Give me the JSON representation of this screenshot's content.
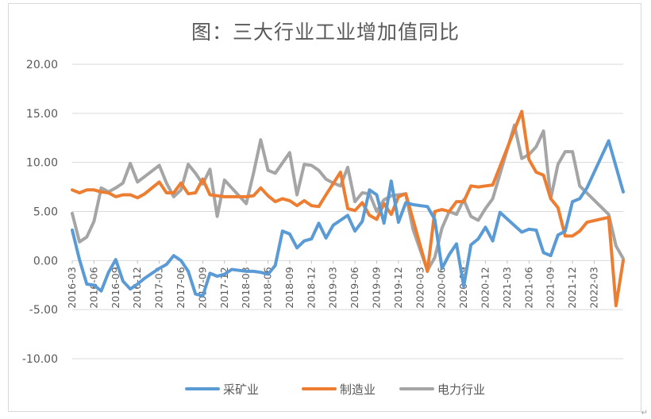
{
  "chart_data": {
    "type": "line",
    "title": "图：三大行业工业增加值同比",
    "ylim": [
      -10,
      20
    ],
    "y_ticks": [
      "20.00",
      "15.00",
      "10.00",
      "5.00",
      "0.00",
      "-5.00",
      "-10.00"
    ],
    "x_tick_labels": [
      "2016-03",
      "2016-06",
      "2016-09",
      "2016-12",
      "2017-03",
      "2017-06",
      "2017-09",
      "2017-12",
      "2018-03",
      "2018-06",
      "2018-09",
      "2018-12",
      "2019-03",
      "2019-06",
      "2019-09",
      "2019-12",
      "2020-03",
      "2020-06",
      "2020-09",
      "2020-12",
      "2021-03",
      "2021-06",
      "2021-09",
      "2021-12",
      "2022-03"
    ],
    "x_start": "2016-03",
    "x_end": "2022-05",
    "grid": true,
    "legend_position": "bottom",
    "series": [
      {
        "name": "采矿业",
        "color": "#5b9bd5",
        "values": [
          3.1,
          0.1,
          -2.4,
          -2.5,
          -3.1,
          -1.2,
          0.1,
          -2.1,
          -2.9,
          -2.4,
          -1.8,
          -1.3,
          -0.8,
          -0.4,
          0.5,
          0.0,
          -1.1,
          -3.4,
          -3.6,
          -1.3,
          -1.6,
          -1.4,
          -0.9,
          -1.0,
          -1.1,
          -1.1,
          -1.2,
          -1.4,
          -0.5,
          3.0,
          2.7,
          1.3,
          2.0,
          2.2,
          3.8,
          2.3,
          3.6,
          null,
          4.6,
          3.0,
          4.0,
          7.2,
          6.7,
          3.8,
          8.1,
          3.9,
          5.9,
          5.7,
          5.6,
          5.5,
          4.2,
          -0.8,
          0.6,
          1.7,
          -2.6,
          1.6,
          2.2,
          3.4,
          2.0,
          4.9,
          null,
          null,
          2.9,
          3.2,
          3.1,
          0.8,
          0.5,
          2.6,
          3.0,
          6.0,
          6.3,
          7.4,
          null,
          null,
          12.2,
          null,
          7.0
        ],
        "labels_note": ""
      },
      {
        "name": "制造业",
        "color": "#ed7d31",
        "values": [
          7.2,
          6.9,
          7.2,
          7.2,
          7.0,
          6.9,
          6.5,
          6.7,
          6.7,
          6.4,
          6.8,
          null,
          8.0,
          6.9,
          6.9,
          7.9,
          6.8,
          6.9,
          8.3,
          6.7,
          6.6,
          6.5,
          6.5,
          6.5,
          6.5,
          6.6,
          7.4,
          6.6,
          6.0,
          6.3,
          6.1,
          5.6,
          6.1,
          5.6,
          5.5,
          6.7,
          null,
          9.0,
          5.3,
          5.1,
          5.9,
          4.6,
          4.2,
          5.8,
          4.7,
          6.5,
          6.8,
          null,
          null,
          -1.1,
          5.0,
          5.2,
          5.0,
          6.0,
          6.0,
          7.6,
          7.5,
          7.6,
          7.7,
          null,
          null,
          null,
          15.2,
          10.3,
          9.0,
          8.7,
          6.3,
          5.4,
          2.5,
          2.5,
          3.0,
          3.9,
          null,
          null,
          4.4,
          -4.6,
          0.0
        ],
        "labels_note": ""
      },
      {
        "name": "电力行业",
        "color": "#a5a5a5",
        "values": [
          4.8,
          1.9,
          2.4,
          4.0,
          7.4,
          7.0,
          7.4,
          7.9,
          9.9,
          8.0,
          null,
          null,
          9.7,
          7.9,
          6.5,
          7.2,
          9.8,
          8.9,
          7.8,
          9.3,
          4.5,
          8.2,
          7.4,
          6.6,
          5.8,
          8.9,
          12.3,
          9.2,
          8.9,
          null,
          11.0,
          6.7,
          9.8,
          9.7,
          9.2,
          8.3,
          7.9,
          7.6,
          9.5,
          6.0,
          6.9,
          6.8,
          5.0,
          6.2,
          6.6,
          6.7,
          6.8,
          3.2,
          null,
          -1.0,
          0.3,
          3.3,
          5.0,
          4.7,
          6.2,
          4.5,
          4.1,
          5.3,
          6.3,
          null,
          null,
          13.8,
          10.4,
          10.8,
          11.6,
          13.2,
          6.3,
          9.8,
          11.1,
          11.1,
          7.6,
          null,
          null,
          null,
          4.7,
          1.5,
          0.2
        ],
        "labels_note": ""
      }
    ]
  },
  "corner_mark": "↵"
}
